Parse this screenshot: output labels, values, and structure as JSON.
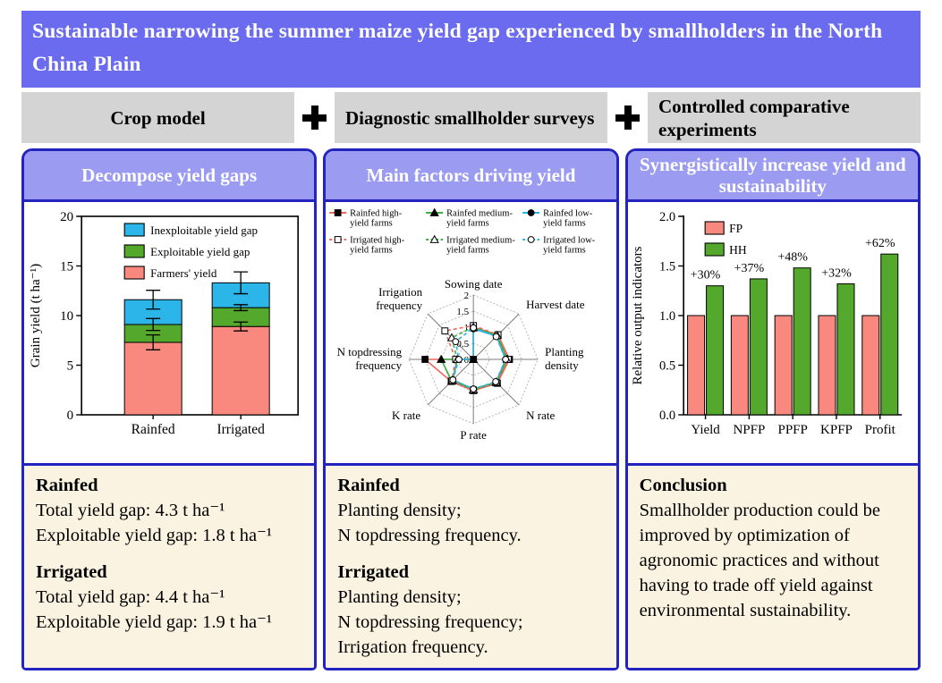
{
  "title": "Sustainable narrowing the summer maize yield gap experienced by smallholders in the North China Plain",
  "methods": {
    "plus": "+",
    "items": [
      "Crop model",
      "Diagnostic smallholder surveys",
      "Controlled comparative experiments"
    ]
  },
  "colors": {
    "title_bar": "#6b6bef",
    "panel_header": "#9b9bf1",
    "panel_border": "#2323bf",
    "method_box": "#d4d4d4",
    "note_bg": "#fbf3e1",
    "salmon": "#f9897f",
    "green": "#54a82c",
    "cyan": "#2cb5e8",
    "red_line": "#f2665c",
    "green_line": "#3fae49",
    "blue_line": "#2ab2ea"
  },
  "panels": {
    "left": {
      "header": "Decompose yield gaps",
      "notes": {
        "h1": "Rainfed",
        "l1": "Total yield gap: 4.3 t ha⁻¹",
        "l2": "Exploitable yield gap: 1.8 t ha⁻¹",
        "h2": "Irrigated",
        "l3": "Total yield gap: 4.4 t ha⁻¹",
        "l4": "Exploitable yield gap: 1.9 t ha⁻¹"
      }
    },
    "middle": {
      "header": "Main factors driving yield",
      "notes": {
        "h1": "Rainfed",
        "l1": "Planting density;",
        "l2": "N topdressing frequency.",
        "h2": "Irrigated",
        "l3": "Planting density;",
        "l4": "N topdressing frequency;",
        "l5": "Irrigation frequency."
      }
    },
    "right": {
      "header": "Synergistically increase yield and sustainability",
      "notes": {
        "h1": "Conclusion",
        "p1": "Smallholder production could be improved by optimization of agronomic practices and without having to trade off yield against environmental sustainability."
      }
    }
  },
  "chart_data": [
    {
      "type": "bar",
      "variant": "stacked",
      "ylabel": "Grain yield (t ha⁻¹)",
      "ylim": [
        0,
        20
      ],
      "yticks": [
        0,
        5,
        10,
        15,
        20
      ],
      "categories": [
        "Rainfed",
        "Irrigated"
      ],
      "series": [
        {
          "name": "Farmers' yield",
          "color_key": "salmon",
          "values": [
            7.3,
            8.9
          ]
        },
        {
          "name": "Exploitable yield gap",
          "color_key": "green",
          "values": [
            1.8,
            1.9
          ]
        },
        {
          "name": "Inexploitable yield gap",
          "color_key": "cyan",
          "values": [
            2.5,
            2.5
          ]
        }
      ],
      "legend_order": [
        2,
        1,
        0
      ],
      "error_bars": {
        "Rainfed": [
          [
            7.3,
            0.75
          ],
          [
            9.1,
            0.6
          ],
          [
            11.6,
            0.95
          ]
        ],
        "Irrigated": [
          [
            8.9,
            0.45
          ],
          [
            10.8,
            0.3
          ],
          [
            13.3,
            1.1
          ]
        ]
      }
    },
    {
      "type": "radar",
      "rlim": [
        0,
        2
      ],
      "rticks": [
        0,
        0.5,
        1,
        1.5,
        2
      ],
      "axes": [
        "Sowing date",
        "Harvest date",
        "Planting density",
        "N rate",
        "P rate",
        "K rate",
        "N topdressing frequency",
        "Irrigation frequency"
      ],
      "series": [
        {
          "name": "Rainfed high-yield farms",
          "legend_lines": [
            "Rainfed high-",
            "yield farms"
          ],
          "color_key": "red_line",
          "line": "solid",
          "marker": "square",
          "filled": true,
          "values": [
            1.0,
            1.08,
            1.12,
            1.05,
            0.97,
            0.97,
            1.5,
            0
          ]
        },
        {
          "name": "Rainfed medium-yield farms",
          "legend_lines": [
            "Rainfed medium-",
            "yield farms"
          ],
          "color_key": "green_line",
          "line": "solid",
          "marker": "triangle",
          "filled": true,
          "values": [
            0.98,
            1.05,
            1.06,
            1.02,
            0.95,
            0.95,
            1.0,
            0
          ]
        },
        {
          "name": "Rainfed low-yield farms",
          "legend_lines": [
            "Rainfed low-",
            "yield farms"
          ],
          "color_key": "blue_line",
          "line": "solid",
          "marker": "circle",
          "filled": true,
          "values": [
            0.95,
            1.02,
            1.0,
            1.0,
            0.92,
            0.9,
            0.5,
            0
          ]
        },
        {
          "name": "Irrigated high-yield farms",
          "legend_lines": [
            "Irrigated high-",
            "yield farms"
          ],
          "color_key": "red_line",
          "line": "dashed",
          "marker": "square",
          "filled": false,
          "values": [
            1.05,
            1.08,
            1.08,
            1.03,
            0.95,
            0.95,
            0.55,
            1.25
          ]
        },
        {
          "name": "Irrigated medium-yield farms",
          "legend_lines": [
            "Irrigated medium-",
            "yield farms"
          ],
          "color_key": "green_line",
          "line": "dashed",
          "marker": "triangle",
          "filled": false,
          "values": [
            1.0,
            1.05,
            1.04,
            1.0,
            0.94,
            0.92,
            0.5,
            0.95
          ]
        },
        {
          "name": "Irrigated low-yield farms",
          "legend_lines": [
            "Irrigated low-",
            "yield farms"
          ],
          "color_key": "blue_line",
          "line": "dashed",
          "marker": "circle",
          "filled": false,
          "values": [
            0.98,
            1.0,
            1.0,
            0.98,
            0.92,
            0.9,
            0.45,
            0.78
          ]
        }
      ]
    },
    {
      "type": "bar",
      "variant": "grouped",
      "ylabel": "Relative output indicators",
      "ylim": [
        0,
        2
      ],
      "yticks": [
        0,
        0.5,
        1,
        1.5,
        2
      ],
      "categories": [
        "Yield",
        "NPFP",
        "PPFP",
        "KPFP",
        "Profit"
      ],
      "series": [
        {
          "name": "FP",
          "color_key": "salmon",
          "values": [
            1.0,
            1.0,
            1.0,
            1.0,
            1.0
          ]
        },
        {
          "name": "HH",
          "color_key": "green",
          "values": [
            1.3,
            1.37,
            1.48,
            1.32,
            1.62
          ]
        }
      ],
      "bar_labels": [
        "+30%",
        "+37%",
        "+48%",
        "+32%",
        "+62%"
      ]
    }
  ]
}
